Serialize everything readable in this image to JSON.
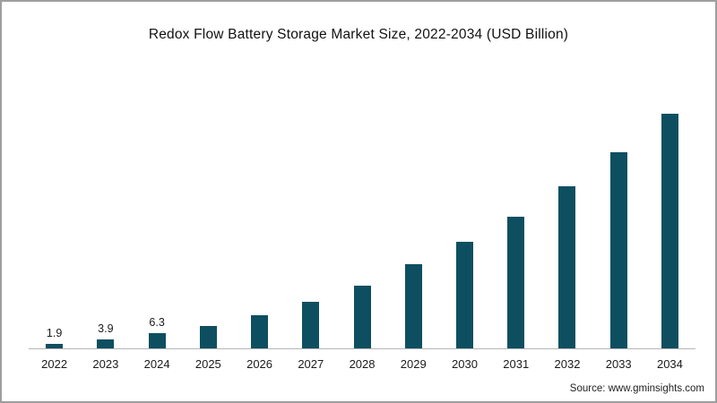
{
  "source": "Source: www.gminsights.com",
  "chart_data": {
    "type": "bar",
    "title": "Redox Flow Battery Storage Market Size, 2022-2034 (USD Billion)",
    "xlabel": "",
    "ylabel": "",
    "categories": [
      "2022",
      "2023",
      "2024",
      "2025",
      "2026",
      "2027",
      "2028",
      "2029",
      "2030",
      "2031",
      "2032",
      "2033",
      "2034"
    ],
    "values": [
      1.9,
      3.9,
      6.3,
      9.5,
      14,
      19.5,
      26,
      35,
      44.5,
      55,
      67.5,
      82,
      98
    ],
    "data_labels": [
      "1.9",
      "3.9",
      "6.3",
      "",
      "",
      "",
      "",
      "",
      "",
      "",
      "",
      "",
      ""
    ],
    "ylim": [
      0,
      102
    ],
    "bar_color": "#0d4f60",
    "grid": false,
    "legend": "none"
  }
}
